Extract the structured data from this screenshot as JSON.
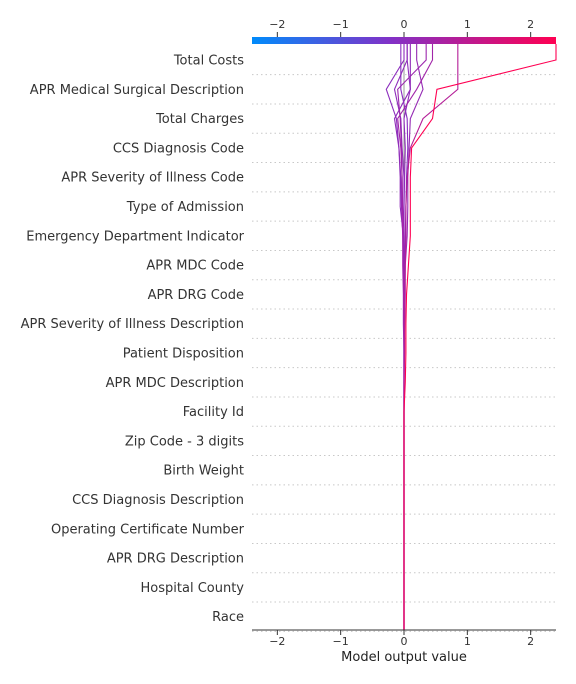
{
  "chart_data": {
    "type": "line",
    "title": "",
    "xlabel": "Model output value",
    "xlim": [
      -2.4,
      2.4
    ],
    "xticks": [
      -2,
      -1,
      0,
      1,
      2
    ],
    "xtick_labels": [
      "−2",
      "−1",
      "0",
      "1",
      "2"
    ],
    "colormap": [
      "#008bfb",
      "#ff0052"
    ],
    "grid": "dotted-horizontal",
    "features": [
      "Race",
      "Hospital County",
      "APR DRG Description",
      "Operating Certificate Number",
      "CCS Diagnosis Description",
      "Birth Weight",
      "Zip Code - 3 digits",
      "Facility Id",
      "APR MDC Description",
      "Patient Disposition",
      "APR Severity of Illness Description",
      "APR DRG Code",
      "APR MDC Code",
      "Emergency Department Indicator",
      "Type of Admission",
      "APR Severity of Illness Code",
      "CCS Diagnosis Code",
      "Total Charges",
      "APR Medical Surgical Description",
      "Total Costs"
    ],
    "series": [
      {
        "values": [
          0,
          0,
          0,
          0,
          0,
          0,
          0,
          0,
          0.02,
          0.03,
          0.03,
          0.04,
          0.07,
          0.1,
          0.1,
          0.1,
          0.12,
          0.45,
          0.52,
          2.4
        ]
      },
      {
        "values": [
          0,
          0,
          0,
          0,
          0,
          0,
          0,
          0,
          0,
          0.01,
          0.01,
          0.02,
          0.02,
          0.03,
          0.03,
          0.05,
          0.1,
          0.3,
          0.85,
          0.85
        ]
      },
      {
        "values": [
          0,
          0,
          0,
          0,
          0,
          0,
          0,
          0,
          0,
          0,
          -0.01,
          -0.01,
          -0.02,
          -0.02,
          -0.03,
          -0.03,
          -0.05,
          -0.1,
          0.2,
          0.45
        ]
      },
      {
        "values": [
          0,
          0,
          0,
          0,
          0,
          0,
          0,
          0,
          0,
          0,
          0.01,
          0.01,
          0.02,
          0.05,
          0.06,
          0.06,
          0.08,
          0.1,
          0.3,
          0.2
        ]
      },
      {
        "values": [
          0,
          0,
          0,
          0,
          0,
          0,
          0,
          0,
          0,
          0,
          0,
          0,
          0,
          0,
          0,
          0,
          -0.03,
          -0.05,
          -0.15,
          0.05
        ]
      },
      {
        "values": [
          0,
          0,
          0,
          0,
          0,
          0,
          0,
          0,
          0,
          0,
          0,
          0,
          0,
          -0.01,
          -0.06,
          -0.06,
          -0.08,
          -0.15,
          0.1,
          0.1
        ]
      },
      {
        "values": [
          0,
          0,
          0,
          0,
          0,
          0,
          0,
          0,
          0,
          0,
          0,
          0,
          0.01,
          0.02,
          0.03,
          0.04,
          0.06,
          0.05,
          -0.05,
          -0.05
        ]
      },
      {
        "values": [
          0,
          0,
          0,
          0,
          0,
          0,
          0,
          0,
          0,
          0,
          0,
          0,
          0,
          0,
          -0.02,
          -0.03,
          -0.04,
          -0.06,
          -0.1,
          0.35
        ]
      },
      {
        "values": [
          0,
          0,
          0,
          0,
          0,
          0,
          0,
          0,
          0,
          0,
          0,
          0,
          -0.01,
          -0.02,
          -0.04,
          -0.05,
          -0.08,
          -0.12,
          -0.28,
          0
        ]
      },
      {
        "values": [
          0,
          0,
          0,
          0,
          0,
          0,
          0,
          0,
          0,
          0,
          0,
          0,
          0,
          0,
          0,
          0.01,
          0.02,
          0,
          0.1,
          0.05
        ]
      }
    ]
  }
}
